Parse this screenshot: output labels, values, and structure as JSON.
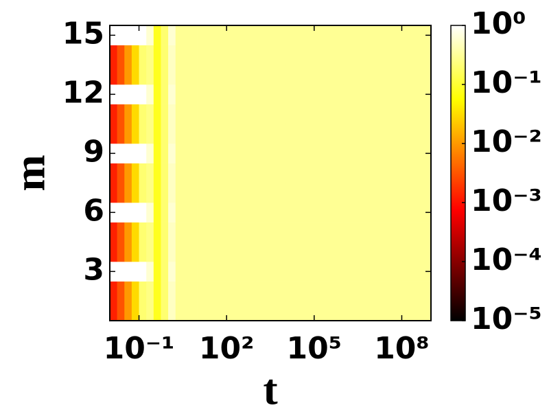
{
  "chart_data": {
    "type": "heatmap",
    "xlabel": "t",
    "ylabel": "m",
    "colormap": "hot",
    "xscale": "log",
    "cscale": "log",
    "x": [
      0.01,
      0.0178,
      0.0316,
      0.0562,
      0.1,
      0.178,
      0.316,
      0.562,
      1,
      1.78,
      3.16,
      10,
      100,
      1000,
      10000,
      100000,
      1000000,
      10000000,
      100000000,
      1000000000
    ],
    "y": [
      1,
      2,
      3,
      4,
      5,
      6,
      7,
      8,
      9,
      10,
      11,
      12,
      13,
      14,
      15
    ],
    "z": [
      [
        0.0013,
        0.003,
        0.01,
        0.03,
        0.2,
        0.25,
        0.08,
        0.2,
        0.5,
        0.3,
        0.3,
        0.3,
        0.3,
        0.3,
        0.3,
        0.3,
        0.3,
        0.3,
        0.3
      ],
      [
        0.0013,
        0.003,
        0.01,
        0.03,
        0.2,
        0.25,
        0.08,
        0.2,
        0.5,
        0.3,
        0.3,
        0.3,
        0.3,
        0.3,
        0.3,
        0.3,
        0.3,
        0.3,
        0.3
      ],
      [
        1,
        1,
        1,
        1,
        1,
        0.6,
        0.08,
        0.2,
        0.6,
        0.3,
        0.3,
        0.3,
        0.3,
        0.3,
        0.3,
        0.3,
        0.3,
        0.3,
        0.3
      ],
      [
        0.0013,
        0.003,
        0.01,
        0.03,
        0.2,
        0.25,
        0.08,
        0.2,
        0.5,
        0.3,
        0.3,
        0.3,
        0.3,
        0.3,
        0.3,
        0.3,
        0.3,
        0.3,
        0.3
      ],
      [
        0.0013,
        0.003,
        0.01,
        0.03,
        0.2,
        0.25,
        0.08,
        0.2,
        0.5,
        0.3,
        0.3,
        0.3,
        0.3,
        0.3,
        0.3,
        0.3,
        0.3,
        0.3,
        0.3
      ],
      [
        1,
        1,
        1,
        1,
        1,
        0.6,
        0.08,
        0.2,
        0.6,
        0.3,
        0.3,
        0.3,
        0.3,
        0.3,
        0.3,
        0.3,
        0.3,
        0.3,
        0.3
      ],
      [
        0.0013,
        0.003,
        0.01,
        0.03,
        0.2,
        0.25,
        0.08,
        0.2,
        0.5,
        0.3,
        0.3,
        0.3,
        0.3,
        0.3,
        0.3,
        0.3,
        0.3,
        0.3,
        0.3
      ],
      [
        0.0013,
        0.003,
        0.01,
        0.03,
        0.2,
        0.25,
        0.08,
        0.2,
        0.5,
        0.3,
        0.3,
        0.3,
        0.3,
        0.3,
        0.3,
        0.3,
        0.3,
        0.3,
        0.3
      ],
      [
        1,
        1,
        1,
        1,
        1,
        0.6,
        0.08,
        0.2,
        0.6,
        0.3,
        0.3,
        0.3,
        0.3,
        0.3,
        0.3,
        0.3,
        0.3,
        0.3,
        0.3
      ],
      [
        0.0013,
        0.003,
        0.01,
        0.03,
        0.2,
        0.25,
        0.08,
        0.2,
        0.5,
        0.3,
        0.3,
        0.3,
        0.3,
        0.3,
        0.3,
        0.3,
        0.3,
        0.3,
        0.3
      ],
      [
        0.0013,
        0.003,
        0.01,
        0.03,
        0.2,
        0.25,
        0.08,
        0.2,
        0.5,
        0.3,
        0.3,
        0.3,
        0.3,
        0.3,
        0.3,
        0.3,
        0.3,
        0.3,
        0.3
      ],
      [
        1,
        1,
        1,
        1,
        1,
        0.6,
        0.08,
        0.2,
        0.6,
        0.3,
        0.3,
        0.3,
        0.3,
        0.3,
        0.3,
        0.3,
        0.3,
        0.3,
        0.3
      ],
      [
        0.0013,
        0.003,
        0.01,
        0.03,
        0.2,
        0.25,
        0.08,
        0.2,
        0.5,
        0.3,
        0.3,
        0.3,
        0.3,
        0.3,
        0.3,
        0.3,
        0.3,
        0.3,
        0.3
      ],
      [
        0.0013,
        0.003,
        0.01,
        0.03,
        0.2,
        0.25,
        0.08,
        0.2,
        0.5,
        0.3,
        0.3,
        0.3,
        0.3,
        0.3,
        0.3,
        0.3,
        0.3,
        0.3,
        0.3
      ],
      [
        1,
        1,
        1,
        1,
        1,
        0.6,
        0.08,
        0.2,
        0.6,
        0.3,
        0.3,
        0.3,
        0.3,
        0.3,
        0.3,
        0.3,
        0.3,
        0.3,
        0.3
      ]
    ],
    "xlim": [
      0.01,
      1000000000
    ],
    "xticks": [
      {
        "value": 0.1,
        "label": "10⁻¹"
      },
      {
        "value": 100,
        "label": "10²"
      },
      {
        "value": 100000,
        "label": "10⁵"
      },
      {
        "value": 100000000,
        "label": "10⁸"
      }
    ],
    "ylim": [
      0.5,
      15.5
    ],
    "yticks": [
      3,
      6,
      9,
      12,
      15
    ],
    "clim": [
      1e-05,
      1
    ],
    "cticks": [
      {
        "value": 1,
        "label": "10⁰"
      },
      {
        "value": 0.1,
        "label": "10⁻¹"
      },
      {
        "value": 0.01,
        "label": "10⁻²"
      },
      {
        "value": 0.001,
        "label": "10⁻³"
      },
      {
        "value": 0.0001,
        "label": "10⁻⁴"
      },
      {
        "value": 1e-05,
        "label": "10⁻⁵"
      }
    ]
  }
}
